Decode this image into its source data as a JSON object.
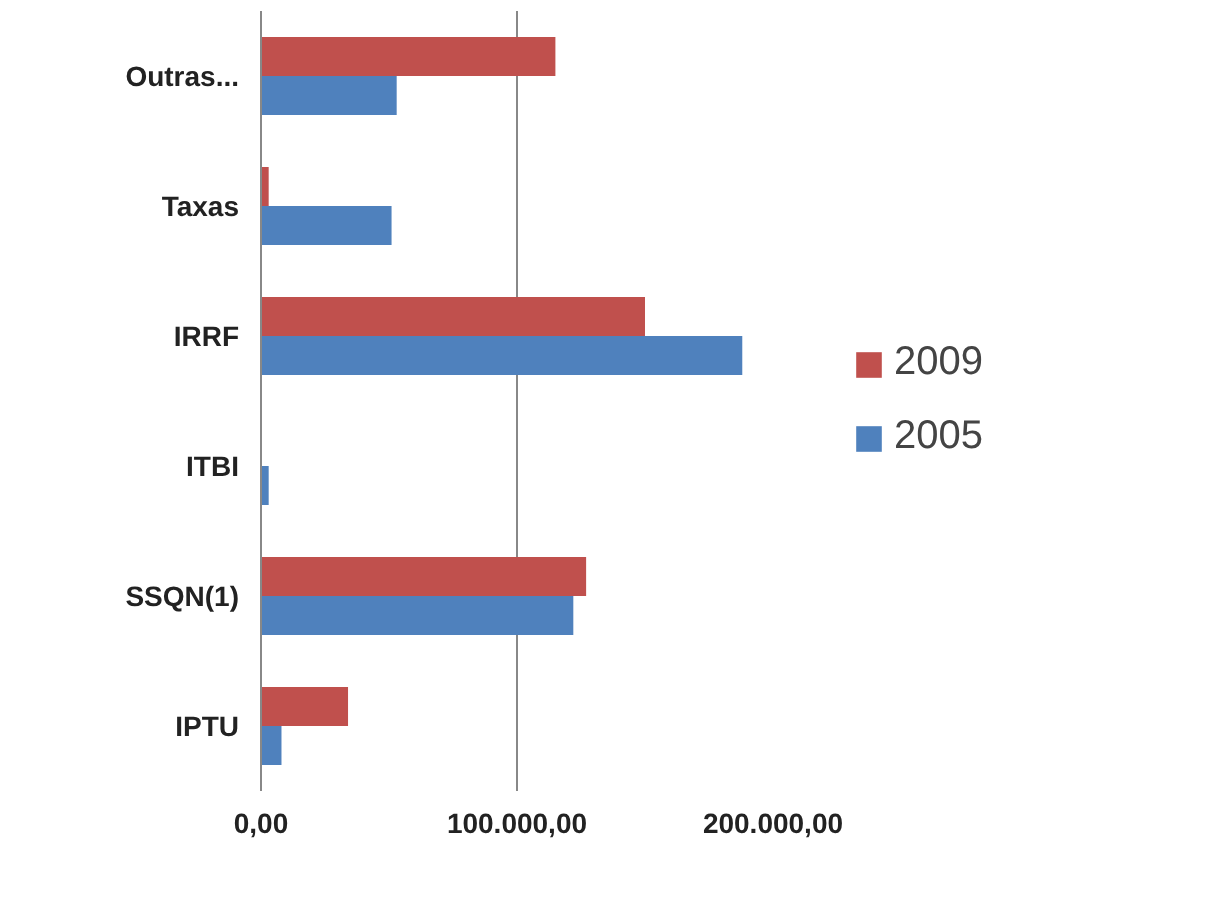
{
  "chart_data": {
    "type": "bar",
    "orientation": "horizontal",
    "categories": [
      "Outras...",
      "Taxas",
      "IRRF",
      "ITBI",
      "SSQN(1)",
      "IPTU"
    ],
    "series": [
      {
        "name": "2009",
        "color": "#c0504d",
        "values": [
          115000,
          3000,
          150000,
          0,
          127000,
          34000
        ]
      },
      {
        "name": "2005",
        "color": "#4f81bd",
        "values": [
          53000,
          51000,
          188000,
          3000,
          122000,
          8000
        ]
      }
    ],
    "xlim": [
      0,
      200000
    ],
    "xticks": [
      {
        "value": 0,
        "label": "0,00"
      },
      {
        "value": 100000,
        "label": "100.000,00"
      },
      {
        "value": 200000,
        "label": "200.000,00"
      }
    ],
    "grid": "x",
    "legend": "right"
  }
}
